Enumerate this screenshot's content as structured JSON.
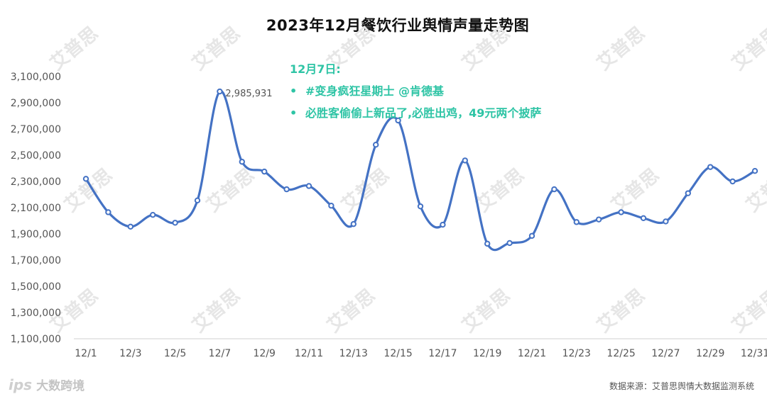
{
  "chart_data": {
    "type": "line",
    "title": "2023年12月餐饮行业舆情声量走势图",
    "x": [
      "12/1",
      "12/2",
      "12/3",
      "12/4",
      "12/5",
      "12/6",
      "12/7",
      "12/8",
      "12/9",
      "12/10",
      "12/11",
      "12/12",
      "12/13",
      "12/14",
      "12/15",
      "12/16",
      "12/17",
      "12/18",
      "12/19",
      "12/20",
      "12/21",
      "12/22",
      "12/23",
      "12/24",
      "12/25",
      "12/26",
      "12/27",
      "12/28",
      "12/29",
      "12/30",
      "12/31"
    ],
    "x_tick_labels": [
      "12/1",
      "12/3",
      "12/5",
      "12/7",
      "12/9",
      "12/11",
      "12/13",
      "12/15",
      "12/17",
      "12/19",
      "12/21",
      "12/23",
      "12/25",
      "12/27",
      "12/29",
      "12/31"
    ],
    "series": [
      {
        "values": [
          2320000,
          2065000,
          1955000,
          2045000,
          1985000,
          2155000,
          2985931,
          2450000,
          2375000,
          2240000,
          2265000,
          2115000,
          1975000,
          2580000,
          2765000,
          2110000,
          1970000,
          2460000,
          1825000,
          1830000,
          1885000,
          2240000,
          1990000,
          2010000,
          2065000,
          2020000,
          1995000,
          2210000,
          2410000,
          2300000,
          2380000
        ],
        "color": "#4472c4"
      }
    ],
    "ylim": [
      1100000,
      3100000
    ],
    "y_ticks": [
      "1,100,000",
      "1,300,000",
      "1,500,000",
      "1,700,000",
      "1,900,000",
      "2,100,000",
      "2,300,000",
      "2,500,000",
      "2,700,000",
      "2,900,000",
      "3,100,000"
    ],
    "y_tick_values": [
      1100000,
      1300000,
      1500000,
      1700000,
      1900000,
      2100000,
      2300000,
      2500000,
      2700000,
      2900000,
      3100000
    ],
    "data_labels": [
      {
        "index": 6,
        "text": "2,985,931"
      }
    ],
    "grid": false,
    "xlabel": "",
    "ylabel": ""
  },
  "annotation": {
    "heading": "12月7日:",
    "bullets": [
      "#变身疯狂星期士 @肯德基",
      "必胜客偷偷上新品了,必胜出鸡，49元两个披萨"
    ],
    "bullet_symbol": "•",
    "color": "#2ec4a5"
  },
  "source_note": "数据来源：艾普思舆情大数据监测系统",
  "brand": {
    "logo": "ips",
    "name": "大数跨境"
  },
  "watermark": {
    "text": "艾普思"
  }
}
